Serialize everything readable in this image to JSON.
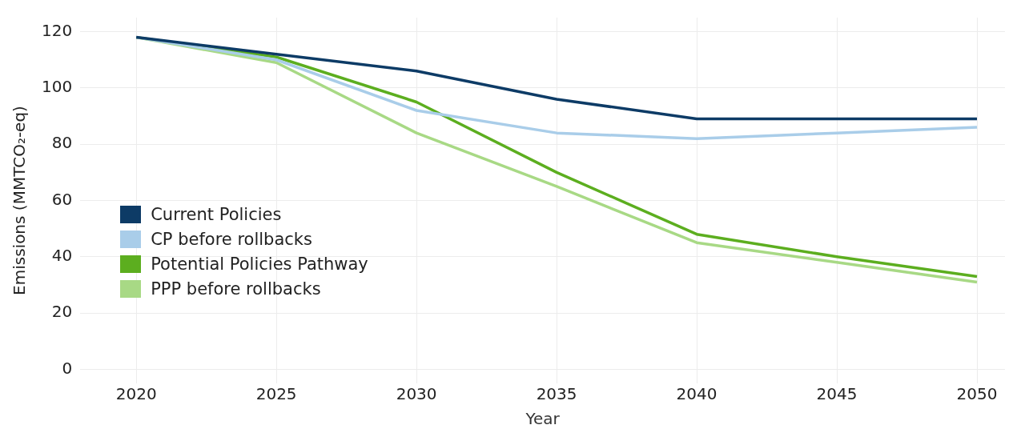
{
  "chart_data": {
    "type": "line",
    "xlabel": "Year",
    "ylabel": "Emissions (MMTCO₂-eq)",
    "x": [
      2020,
      2025,
      2030,
      2035,
      2040,
      2045,
      2050
    ],
    "series": [
      {
        "name": "Current Policies",
        "color": "#0d3b66",
        "values": [
          118,
          112,
          106,
          96,
          89,
          89,
          89
        ]
      },
      {
        "name": "CP before rollbacks",
        "color": "#a9cde9",
        "values": [
          118,
          110,
          92,
          84,
          82,
          84,
          86
        ]
      },
      {
        "name": "Potential Policies Pathway",
        "color": "#5cae1f",
        "values": [
          118,
          111,
          95,
          70,
          48,
          40,
          33
        ]
      },
      {
        "name": "PPP before rollbacks",
        "color": "#a8d985",
        "values": [
          118,
          109,
          84,
          65,
          45,
          38,
          31
        ]
      }
    ],
    "xlim": [
      2018,
      2051
    ],
    "xticks": [
      2020,
      2025,
      2030,
      2035,
      2040,
      2045,
      2050
    ],
    "ylim": [
      -5,
      125
    ],
    "yticks": [
      0,
      20,
      40,
      60,
      80,
      100,
      120
    ],
    "grid": true,
    "legend": "bottom left",
    "marker": "none",
    "line_style": "solid"
  }
}
